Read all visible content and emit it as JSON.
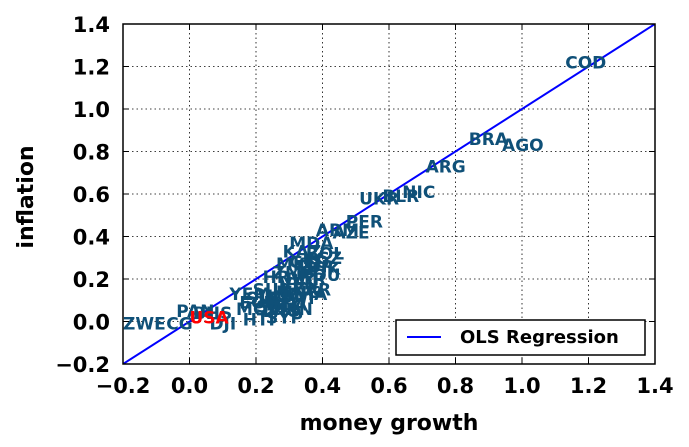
{
  "chart_data": {
    "type": "scatter",
    "title": "",
    "xlabel": "money growth",
    "ylabel": "inflation",
    "xlim": [
      -0.2,
      1.4
    ],
    "ylim": [
      -0.2,
      1.4
    ],
    "xticks": [
      -0.2,
      0.0,
      0.2,
      0.4,
      0.6,
      0.8,
      1.0,
      1.2,
      1.4
    ],
    "yticks": [
      -0.2,
      0.0,
      0.2,
      0.4,
      0.6,
      0.8,
      1.0,
      1.2,
      1.4
    ],
    "xtick_labels": [
      "−0.2",
      "0.0",
      "0.2",
      "0.4",
      "0.6",
      "0.8",
      "1.0",
      "1.2",
      "1.4"
    ],
    "ytick_labels": [
      "−0.2",
      "0.0",
      "0.2",
      "0.4",
      "0.6",
      "0.8",
      "1.0",
      "1.2",
      "1.4"
    ],
    "grid": true,
    "point_color": "#0f5078",
    "highlight_color": "#ff0000",
    "regression": {
      "label": "OLS Regression",
      "color": "#0000ff",
      "slope": 1.0,
      "intercept": 0.0
    },
    "legend": {
      "position": "lower-right",
      "entries": [
        "OLS Regression"
      ]
    },
    "labeled_points": [
      {
        "label": "COD",
        "x": 1.13,
        "y": 1.22
      },
      {
        "label": "BRA",
        "x": 0.84,
        "y": 0.86
      },
      {
        "label": "AGO",
        "x": 0.94,
        "y": 0.83
      },
      {
        "label": "ARG",
        "x": 0.71,
        "y": 0.73
      },
      {
        "label": "NIC",
        "x": 0.64,
        "y": 0.61
      },
      {
        "label": "BLR",
        "x": 0.58,
        "y": 0.59
      },
      {
        "label": "UKR",
        "x": 0.51,
        "y": 0.58
      },
      {
        "label": "PER",
        "x": 0.47,
        "y": 0.47
      },
      {
        "label": "ARM",
        "x": 0.38,
        "y": 0.43
      },
      {
        "label": "AZE",
        "x": 0.43,
        "y": 0.42
      },
      {
        "label": "MDA",
        "x": 0.3,
        "y": 0.37
      },
      {
        "label": "KAZ",
        "x": 0.28,
        "y": 0.33
      },
      {
        "label": "BOL",
        "x": 0.35,
        "y": 0.32
      },
      {
        "label": "KGZ",
        "x": 0.34,
        "y": 0.3
      },
      {
        "label": "GEO",
        "x": 0.3,
        "y": 0.28
      },
      {
        "label": "MKD",
        "x": 0.26,
        "y": 0.27
      },
      {
        "label": "TUR",
        "x": 0.32,
        "y": 0.26
      },
      {
        "label": "TJK",
        "x": 0.36,
        "y": 0.25
      },
      {
        "label": "ZMB",
        "x": 0.25,
        "y": 0.23
      },
      {
        "label": "HRV",
        "x": 0.22,
        "y": 0.21
      },
      {
        "label": "BGR",
        "x": 0.29,
        "y": 0.2
      },
      {
        "label": "ROU",
        "x": 0.33,
        "y": 0.22
      },
      {
        "label": "VEN",
        "x": 0.27,
        "y": 0.18
      },
      {
        "label": "YEM",
        "x": 0.12,
        "y": 0.13
      },
      {
        "label": "SUR",
        "x": 0.19,
        "y": 0.15
      },
      {
        "label": "MNG",
        "x": 0.26,
        "y": 0.14
      },
      {
        "label": "UGA",
        "x": 0.21,
        "y": 0.12
      },
      {
        "label": "GHA",
        "x": 0.29,
        "y": 0.13
      },
      {
        "label": "SLE",
        "x": 0.17,
        "y": 0.11
      },
      {
        "label": "MWI",
        "x": 0.25,
        "y": 0.11
      },
      {
        "label": "ZAR",
        "x": 0.31,
        "y": 0.15
      },
      {
        "label": "ECU",
        "x": 0.15,
        "y": 0.09
      },
      {
        "label": "NGA",
        "x": 0.23,
        "y": 0.08
      },
      {
        "label": "SDN",
        "x": 0.2,
        "y": 0.07
      },
      {
        "label": "MOZ",
        "x": 0.14,
        "y": 0.06
      },
      {
        "label": "LAO",
        "x": 0.22,
        "y": 0.05
      },
      {
        "label": "IRN",
        "x": 0.27,
        "y": 0.06
      },
      {
        "label": "PAN",
        "x": -0.04,
        "y": 0.05
      },
      {
        "label": "BHS",
        "x": 0.01,
        "y": 0.04
      },
      {
        "label": "SYP",
        "x": 0.23,
        "y": 0.02
      },
      {
        "label": "HTI",
        "x": 0.16,
        "y": 0.01
      },
      {
        "label": "DJI",
        "x": 0.06,
        "y": -0.01
      },
      {
        "label": "ZWE",
        "x": -0.2,
        "y": -0.01
      },
      {
        "label": "CG",
        "x": -0.07,
        "y": -0.01
      },
      {
        "label": "USA",
        "x": 0.0,
        "y": 0.02,
        "highlight": true
      }
    ]
  }
}
